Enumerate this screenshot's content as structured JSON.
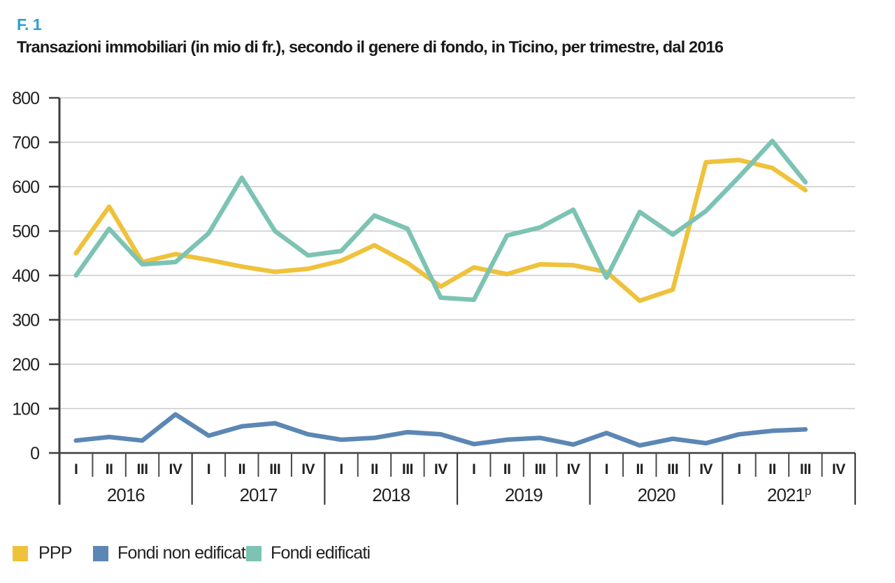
{
  "figure": {
    "number": "F. 1"
  },
  "colors": {
    "figure_number": "#2E9FD1",
    "grid": "#C9C9C9",
    "axis": "#3D3D3D",
    "tick": "#4A4A4A",
    "text": "#222222"
  },
  "chart_data": {
    "type": "line",
    "title": "Transazioni immobiliari (in mio di fr.), secondo il genere di fondo, in Ticino, per trimestre, dal 2016",
    "xlabel": "",
    "ylabel": "",
    "ylim": [
      0,
      800
    ],
    "yticks": [
      0,
      100,
      200,
      300,
      400,
      500,
      600,
      700,
      800
    ],
    "grid": true,
    "legend_position": "bottom",
    "x_unit": "trimestre",
    "years": [
      {
        "label": "2016",
        "sup": "",
        "quarters": [
          "I",
          "II",
          "III",
          "IV"
        ]
      },
      {
        "label": "2017",
        "sup": "",
        "quarters": [
          "I",
          "II",
          "III",
          "IV"
        ]
      },
      {
        "label": "2018",
        "sup": "",
        "quarters": [
          "I",
          "II",
          "III",
          "IV"
        ]
      },
      {
        "label": "2019",
        "sup": "",
        "quarters": [
          "I",
          "II",
          "III",
          "IV"
        ]
      },
      {
        "label": "2020",
        "sup": "",
        "quarters": [
          "I",
          "II",
          "III",
          "IV"
        ]
      },
      {
        "label": "2021",
        "sup": "p",
        "quarters": [
          "I",
          "II",
          "III",
          "IV"
        ]
      }
    ],
    "series": [
      {
        "name": "PPP",
        "color": "#EFC23C",
        "values": [
          450,
          555,
          430,
          448,
          435,
          420,
          408,
          415,
          433,
          468,
          428,
          375,
          418,
          403,
          425,
          423,
          408,
          343,
          368,
          655,
          660,
          642,
          592
        ]
      },
      {
        "name": "Fondi non edificati",
        "color": "#5C87B4",
        "values": [
          28,
          36,
          28,
          87,
          39,
          60,
          67,
          42,
          30,
          34,
          47,
          42,
          20,
          30,
          34,
          19,
          45,
          17,
          32,
          22,
          42,
          50,
          53
        ]
      },
      {
        "name": "Fondi edificati",
        "color": "#7CC3B3",
        "values": [
          400,
          505,
          425,
          430,
          495,
          620,
          500,
          445,
          455,
          535,
          505,
          350,
          345,
          490,
          508,
          548,
          395,
          543,
          492,
          545,
          622,
          703,
          610
        ]
      }
    ]
  }
}
